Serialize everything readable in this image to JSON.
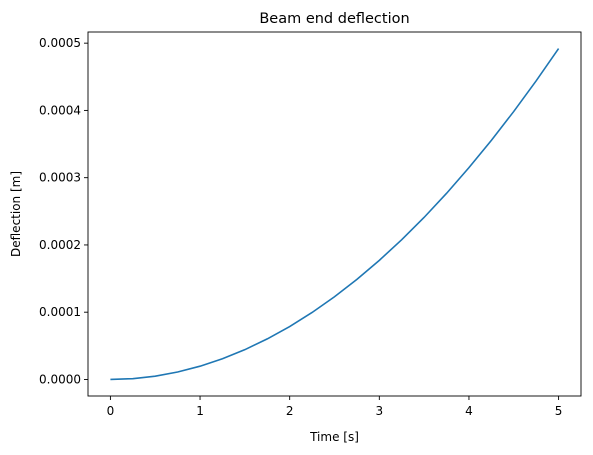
{
  "chart_data": {
    "type": "line",
    "title": "Beam end deflection",
    "xlabel": "Time [s]",
    "ylabel": "Deflection [m]",
    "xlim": [
      -0.25,
      5.25
    ],
    "ylim": [
      -2.46e-05,
      0.0005166
    ],
    "xticks": [
      0,
      1,
      2,
      3,
      4,
      5
    ],
    "xtick_labels": [
      "0",
      "1",
      "2",
      "3",
      "4",
      "5"
    ],
    "yticks": [
      0,
      0.0001,
      0.0002,
      0.0003,
      0.0004,
      0.0005
    ],
    "ytick_labels": [
      "0.0000",
      "0.0001",
      "0.0002",
      "0.0003",
      "0.0004",
      "0.0005"
    ],
    "grid": false,
    "legend": "none",
    "series": [
      {
        "color": "#1f77b4",
        "x": [
          0,
          0.25,
          0.5,
          0.75,
          1,
          1.25,
          1.5,
          1.75,
          2,
          2.25,
          2.5,
          2.75,
          3,
          3.25,
          3.5,
          3.75,
          4,
          4.25,
          4.5,
          4.75,
          5
        ],
        "y": [
          0,
          1.2e-06,
          4.9e-06,
          1.11e-05,
          1.97e-05,
          3.08e-05,
          4.43e-05,
          6.03e-05,
          7.87e-05,
          9.96e-05,
          0.000123,
          0.0001488,
          0.0001771,
          0.0002078,
          0.000241,
          0.0002767,
          0.0003149,
          0.0003555,
          0.0003985,
          0.000444,
          0.000492
        ]
      }
    ]
  }
}
